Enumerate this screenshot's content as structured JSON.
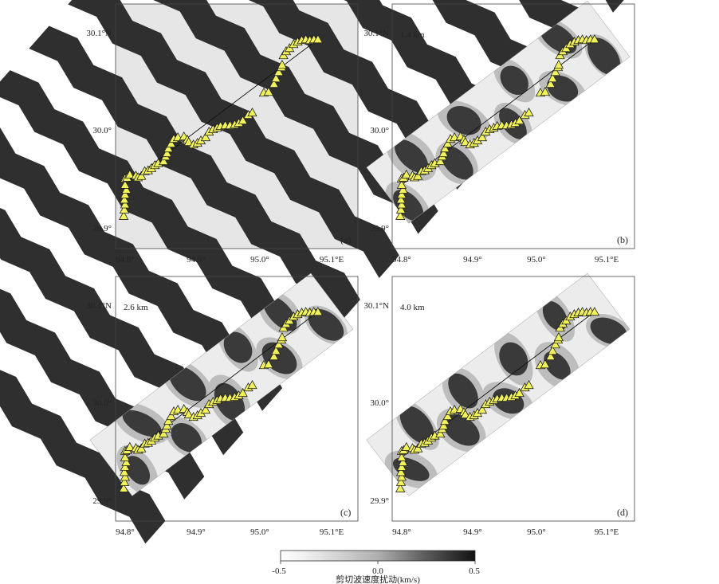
{
  "figure": {
    "panels": [
      {
        "letter": "(a)",
        "depth": "",
        "mode": "checker"
      },
      {
        "letter": "(b)",
        "depth": "1.4 km",
        "mode": "strip"
      },
      {
        "letter": "(c)",
        "depth": "2.6 km",
        "mode": "strip"
      },
      {
        "letter": "(d)",
        "depth": "4.0 km",
        "mode": "strip"
      }
    ],
    "x_ticks": [
      "94.8°",
      "94.9°",
      "95.0°",
      "95.1°E"
    ],
    "y_ticks": [
      "30.1°N",
      "30.0°",
      "29.9°"
    ],
    "colorbar": {
      "ticks": [
        "-0.5",
        "0.0",
        "0.5"
      ],
      "label": "剪切波速度扰动(km/s)",
      "colors": [
        "#ffffff",
        "#555555",
        "#1a1a1a"
      ]
    },
    "station_color": "#f2f25a",
    "stations": [
      [
        0.0335,
        0.1334
      ],
      [
        0.0363,
        0.1594
      ],
      [
        0.0391,
        0.1805
      ],
      [
        0.0363,
        0.2002
      ],
      [
        0.0391,
        0.2212
      ],
      [
        0.0447,
        0.2408
      ],
      [
        0.0391,
        0.2604
      ],
      [
        0.0391,
        0.2864
      ],
      [
        0.0475,
        0.2897
      ],
      [
        0.0587,
        0.3024
      ],
      [
        0.0838,
        0.2984
      ],
      [
        0.0922,
        0.2912
      ],
      [
        0.1061,
        0.2969
      ],
      [
        0.1201,
        0.3164
      ],
      [
        0.1341,
        0.3197
      ],
      [
        0.148,
        0.3287
      ],
      [
        0.162,
        0.341
      ],
      [
        0.176,
        0.3492
      ],
      [
        0.1983,
        0.3573
      ],
      [
        0.2067,
        0.3768
      ],
      [
        0.2123,
        0.3899
      ],
      [
        0.2179,
        0.4095
      ],
      [
        0.2291,
        0.4291
      ],
      [
        0.2402,
        0.4486
      ],
      [
        0.257,
        0.4551
      ],
      [
        0.2821,
        0.4584
      ],
      [
        0.2961,
        0.4453
      ],
      [
        0.3017,
        0.4355
      ],
      [
        0.3212,
        0.4258
      ],
      [
        0.338,
        0.4323
      ],
      [
        0.352,
        0.442
      ],
      [
        0.3715,
        0.4551
      ],
      [
        0.3855,
        0.4779
      ],
      [
        0.4022,
        0.4878
      ],
      [
        0.419,
        0.4942
      ],
      [
        0.433,
        0.5008
      ],
      [
        0.4525,
        0.504
      ],
      [
        0.4721,
        0.504
      ],
      [
        0.4916,
        0.5073
      ],
      [
        0.5084,
        0.5138
      ],
      [
        0.5251,
        0.5236
      ],
      [
        0.5475,
        0.5463
      ],
      [
        0.5642,
        0.5561
      ],
      [
        0.6117,
        0.6374
      ],
      [
        0.6313,
        0.6406
      ],
      [
        0.6536,
        0.6733
      ],
      [
        0.662,
        0.696
      ],
      [
        0.6732,
        0.7221
      ],
      [
        0.6844,
        0.7416
      ],
      [
        0.6872,
        0.7513
      ],
      [
        0.6928,
        0.7903
      ],
      [
        0.7039,
        0.8066
      ],
      [
        0.7179,
        0.8195
      ],
      [
        0.7346,
        0.8359
      ],
      [
        0.7514,
        0.8457
      ],
      [
        0.7682,
        0.8522
      ],
      [
        0.7849,
        0.8554
      ],
      [
        0.8017,
        0.8522
      ],
      [
        0.8184,
        0.8554
      ],
      [
        0.8352,
        0.8554
      ]
    ]
  }
}
